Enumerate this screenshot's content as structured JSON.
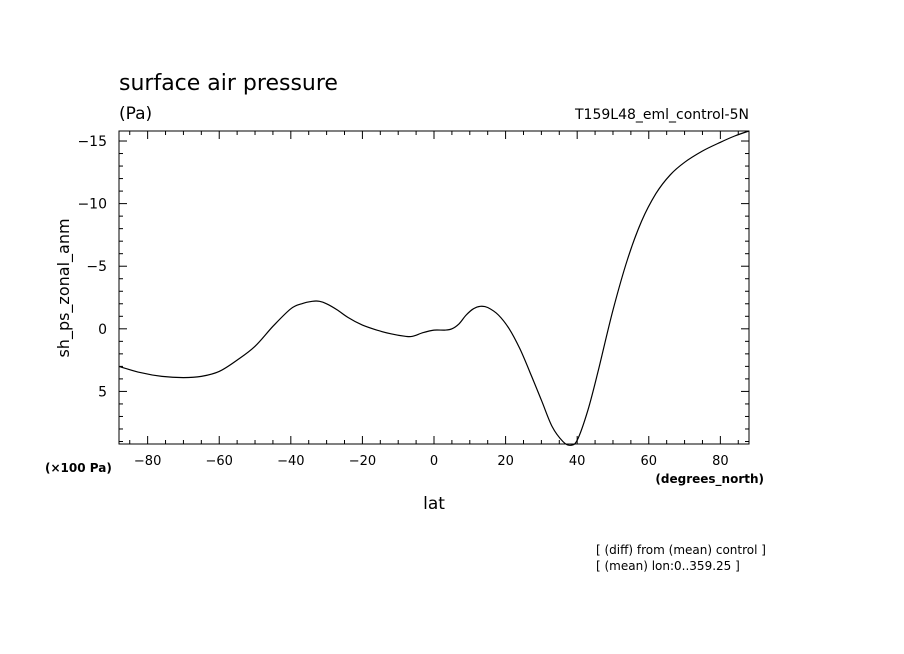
{
  "chart_data": {
    "type": "line",
    "title": "surface air pressure",
    "units": "(Pa)",
    "run_label": "T159L48_eml_control-5N",
    "xlabel": "lat",
    "ylabel": "sh_ps_zonal_anm",
    "x_units": "(degrees_north)",
    "y_scale_label": "(×100 Pa)",
    "xlim": [
      -88,
      88
    ],
    "ylim": [
      9.2,
      -15.8
    ],
    "y_axis_inverted": true,
    "x_ticks": [
      -80,
      -60,
      -40,
      -20,
      0,
      20,
      40,
      60,
      80
    ],
    "x_tick_labels": [
      "−80",
      "−60",
      "−40",
      "−20",
      "0",
      "20",
      "40",
      "60",
      "80"
    ],
    "y_ticks": [
      -15,
      -10,
      -5,
      0,
      5
    ],
    "y_tick_labels": [
      "−15",
      "−10",
      "−5",
      "0",
      "5"
    ],
    "grid": false,
    "series": [
      {
        "x": [
          -88,
          -82,
          -76,
          -70,
          -65,
          -60,
          -55,
          -50,
          -45,
          -40,
          -37,
          -34,
          -32,
          -30,
          -27,
          -24,
          -20,
          -16,
          -12,
          -8,
          -6,
          -3,
          0,
          3,
          5,
          7,
          9,
          11,
          13,
          15,
          18,
          21,
          24,
          27,
          30,
          33,
          36,
          38,
          40,
          43,
          46,
          50,
          54,
          58,
          62,
          66,
          70,
          75,
          80,
          84,
          88
        ],
        "y": [
          3.0,
          3.5,
          3.8,
          3.9,
          3.8,
          3.4,
          2.5,
          1.4,
          -0.2,
          -1.6,
          -2.0,
          -2.2,
          -2.2,
          -2.0,
          -1.5,
          -0.9,
          -0.3,
          0.1,
          0.4,
          0.6,
          0.6,
          0.3,
          0.1,
          0.1,
          0.0,
          -0.4,
          -1.1,
          -1.6,
          -1.8,
          -1.7,
          -1.1,
          0.0,
          1.6,
          3.6,
          5.7,
          7.8,
          9.0,
          9.3,
          8.9,
          6.5,
          3.2,
          -1.5,
          -5.5,
          -8.6,
          -10.8,
          -12.3,
          -13.3,
          -14.2,
          -14.9,
          -15.4,
          -15.8
        ]
      }
    ],
    "annotations": [
      "[ (diff) from (mean) control ]",
      "[ (mean) lon:0..359.25 ]"
    ]
  }
}
